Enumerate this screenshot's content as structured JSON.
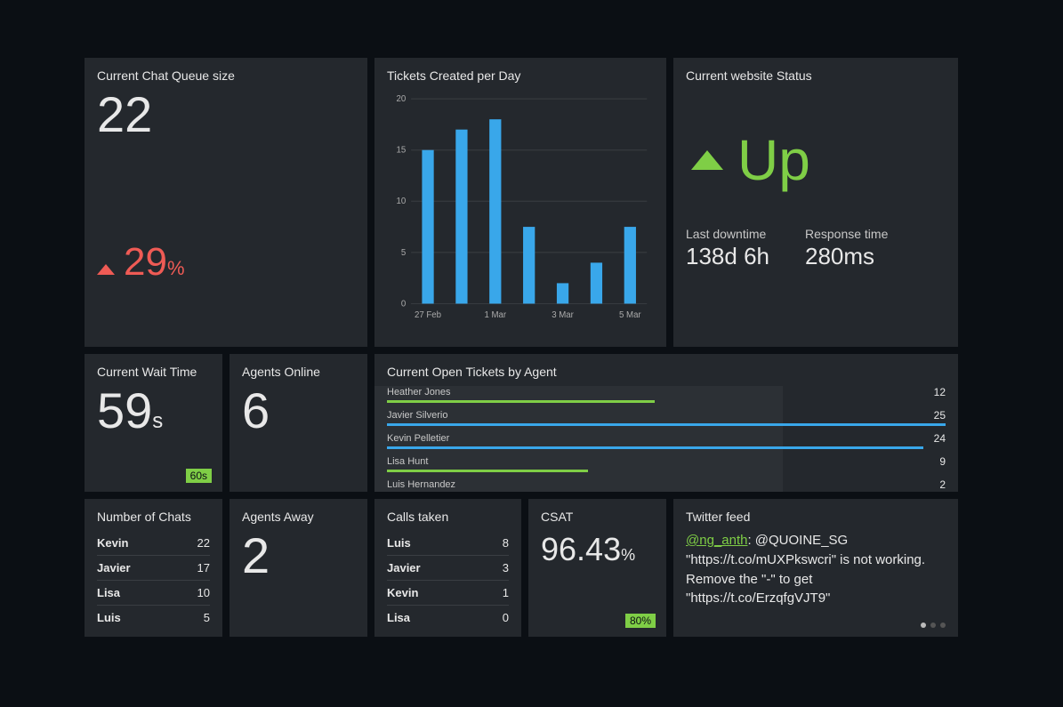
{
  "colors": {
    "card_bg": "#24282d",
    "page_bg": "#0b0f14",
    "text": "#e8e8e8",
    "red": "#ef5b55",
    "green": "#7fce46",
    "blue": "#39a7ea"
  },
  "queue": {
    "title": "Current Chat Queue size",
    "value": "22",
    "trend_value": "29",
    "trend_pct": "%",
    "trend_direction": "up",
    "trend_color": "#ef5b55"
  },
  "tickets_chart": {
    "title": "Tickets Created per Day",
    "type": "bar",
    "ylim": [
      0,
      20
    ],
    "yticks": [
      0,
      5,
      10,
      15,
      20
    ],
    "categories": [
      "27 Feb",
      "",
      "1 Mar",
      "",
      "3 Mar",
      "",
      "5 Mar"
    ],
    "values": [
      15,
      17,
      18,
      7.5,
      2,
      4,
      7.5
    ],
    "bar_color": "#39a7ea",
    "grid_color": "#3a3e43",
    "axis_font_size": 10,
    "bar_width_ratio": 0.35
  },
  "status": {
    "title": "Current website Status",
    "status_text": "Up",
    "status_color": "#7fce46",
    "downtime_label": "Last downtime",
    "downtime_value": "138d 6h",
    "response_label": "Response time",
    "response_value": "280ms"
  },
  "wait": {
    "title": "Current Wait Time",
    "value": "59",
    "unit": "s",
    "badge_text": "60s",
    "badge_color": "#7fce46"
  },
  "agents_online": {
    "title": "Agents Online",
    "value": "6"
  },
  "open_tickets": {
    "title": "Current Open Tickets by Agent",
    "max": 25,
    "rows": [
      {
        "name": "Heather Jones",
        "value": 12,
        "color": "#7fce46"
      },
      {
        "name": "Javier Silverio",
        "value": 25,
        "color": "#39a7ea"
      },
      {
        "name": "Kevin Pelletier",
        "value": 24,
        "color": "#39a7ea"
      },
      {
        "name": "Lisa Hunt",
        "value": 9,
        "color": "#7fce46"
      },
      {
        "name": "Luis Hernandez",
        "value": 2,
        "color": "#7fce46"
      }
    ]
  },
  "chats": {
    "title": "Number of Chats",
    "rows": [
      {
        "name": "Kevin",
        "value": 22
      },
      {
        "name": "Javier",
        "value": 17
      },
      {
        "name": "Lisa",
        "value": 10
      },
      {
        "name": "Luis",
        "value": 5
      }
    ]
  },
  "agents_away": {
    "title": "Agents Away",
    "value": "2"
  },
  "calls": {
    "title": "Calls taken",
    "rows": [
      {
        "name": "Luis",
        "value": 8
      },
      {
        "name": "Javier",
        "value": 3
      },
      {
        "name": "Kevin",
        "value": 1
      },
      {
        "name": "Lisa",
        "value": 0
      }
    ]
  },
  "csat": {
    "title": "CSAT",
    "value": "96.43",
    "unit": "%",
    "badge_text": "80%",
    "badge_color": "#7fce46"
  },
  "twitter": {
    "title": "Twitter feed",
    "handle": "@ng_anth",
    "handle_color": "#7fce46",
    "body": ": @QUOINE_SG \"https://t.co/mUXPkswcri\" is not working. Remove the \"-\" to get \"https://t.co/ErzqfgVJT9\"",
    "page_dots": 3,
    "active_dot": 0
  }
}
